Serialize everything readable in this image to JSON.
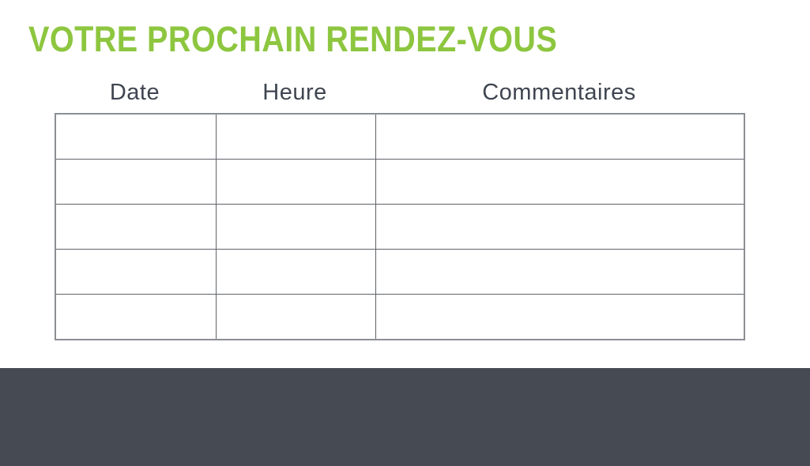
{
  "page": {
    "title": "VOTRE PROCHAIN RENDEZ-VOUS",
    "title_color": "#8dc63f",
    "background_color": "#ffffff"
  },
  "table": {
    "columns": [
      {
        "label": "Date"
      },
      {
        "label": "Heure"
      },
      {
        "label": "Commentaires"
      }
    ],
    "rows": [
      {
        "date": "",
        "heure": "",
        "commentaires": ""
      },
      {
        "date": "",
        "heure": "",
        "commentaires": ""
      },
      {
        "date": "",
        "heure": "",
        "commentaires": ""
      },
      {
        "date": "",
        "heure": "",
        "commentaires": ""
      },
      {
        "date": "",
        "heure": "",
        "commentaires": ""
      }
    ],
    "header_text_color": "#3f4550",
    "border_color": "#5f6368"
  },
  "footer": {
    "background_color": "#464a53"
  }
}
